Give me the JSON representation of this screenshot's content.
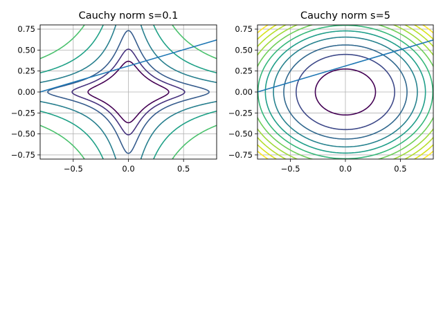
{
  "figure": {
    "background": "#ffffff"
  },
  "chart_data": [
    {
      "type": "contour",
      "title": "Cauchy norm s=0.1",
      "function": "log(1 + (x/s)^2) + log(1 + (y/s)^2)",
      "s": 0.1,
      "xlim": [
        -0.8,
        0.8
      ],
      "ylim": [
        -0.8,
        0.8
      ],
      "xticks": [
        -0.5,
        0.0,
        0.5
      ],
      "xtick_labels": [
        "−0.5",
        "0.0",
        "0.5"
      ],
      "yticks": [
        -0.75,
        -0.5,
        -0.25,
        0.0,
        0.25,
        0.5,
        0.75
      ],
      "ytick_labels": [
        "−0.75",
        "−0.50",
        "−0.25",
        "0.00",
        "0.25",
        "0.50",
        "0.75"
      ],
      "levels": [
        2.67,
        3.3,
        4.0,
        5.0,
        6.0,
        7.0
      ],
      "level_colors": [
        "#440154",
        "#46327e",
        "#365c8d",
        "#277f8e",
        "#1fa187",
        "#4ac16d"
      ],
      "grid": true,
      "line": {
        "x": [
          -0.8,
          0.8
        ],
        "y": [
          0.0,
          0.62
        ],
        "color": "#1f77b4"
      }
    },
    {
      "type": "contour",
      "title": "Cauchy norm s=5",
      "function": "log(1 + (x/s)^2) + log(1 + (y/s)^2)",
      "s": 5,
      "xlim": [
        -0.8,
        0.8
      ],
      "ylim": [
        -0.8,
        0.8
      ],
      "xticks": [
        -0.5,
        0.0,
        0.5
      ],
      "xtick_labels": [
        "−0.5",
        "0.0",
        "0.5"
      ],
      "yticks": [
        -0.75,
        -0.5,
        -0.25,
        0.0,
        0.25,
        0.5,
        0.75
      ],
      "ytick_labels": [
        "−0.75",
        "−0.50",
        "−0.25",
        "0.00",
        "0.25",
        "0.50",
        "0.75"
      ],
      "levels": [
        0.003,
        0.008,
        0.0125,
        0.017,
        0.021,
        0.025,
        0.029,
        0.033,
        0.037,
        0.041,
        0.045
      ],
      "level_colors": [
        "#440154",
        "#3e4989",
        "#31688e",
        "#26828e",
        "#1f9e89",
        "#35b779",
        "#6ece58",
        "#9fda3a",
        "#b5de2b",
        "#d8e219",
        "#fde725"
      ],
      "grid": true,
      "line": {
        "x": [
          -0.8,
          0.8
        ],
        "y": [
          0.0,
          0.62
        ],
        "color": "#1f77b4"
      }
    }
  ]
}
